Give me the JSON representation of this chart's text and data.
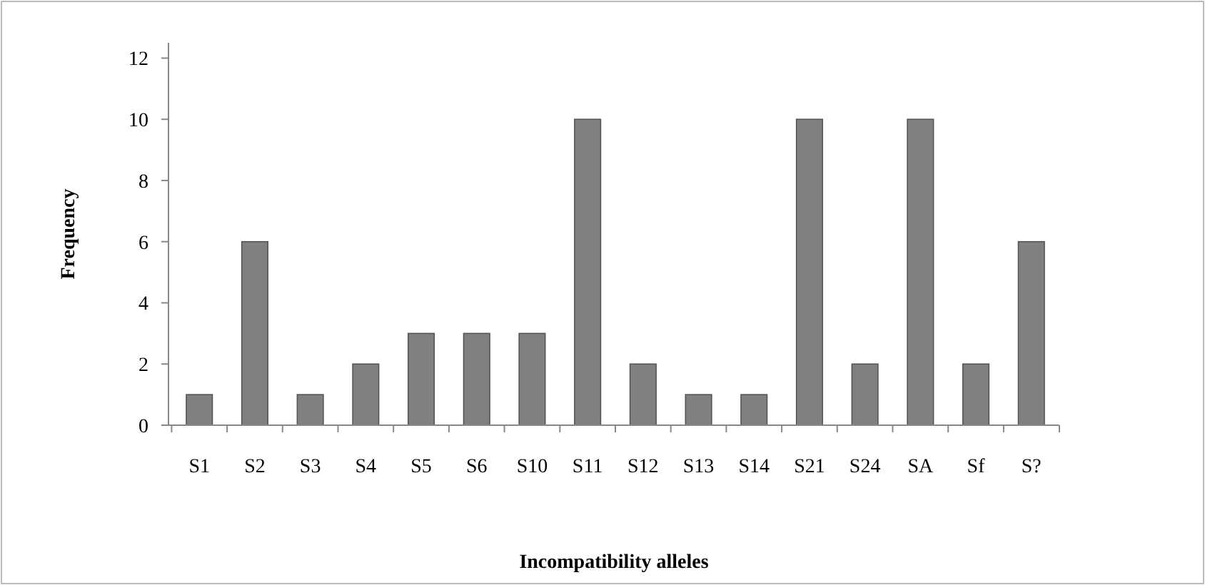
{
  "chart_data": {
    "type": "bar",
    "xlabel": "Incompatibility alleles",
    "ylabel": "Frequency",
    "categories": [
      "S1",
      "S2",
      "S3",
      "S4",
      "S5",
      "S6",
      "S10",
      "S11",
      "S12",
      "S13",
      "S14",
      "S21",
      "S24",
      "SA",
      "Sf",
      "S?"
    ],
    "values": [
      1,
      6,
      1,
      2,
      3,
      3,
      3,
      10,
      2,
      1,
      1,
      10,
      2,
      10,
      2,
      6
    ],
    "color": "#808080",
    "ylim": [
      0,
      12.5
    ],
    "yticks": [
      0,
      2,
      4,
      6,
      8,
      10,
      12
    ],
    "grid": false
  }
}
